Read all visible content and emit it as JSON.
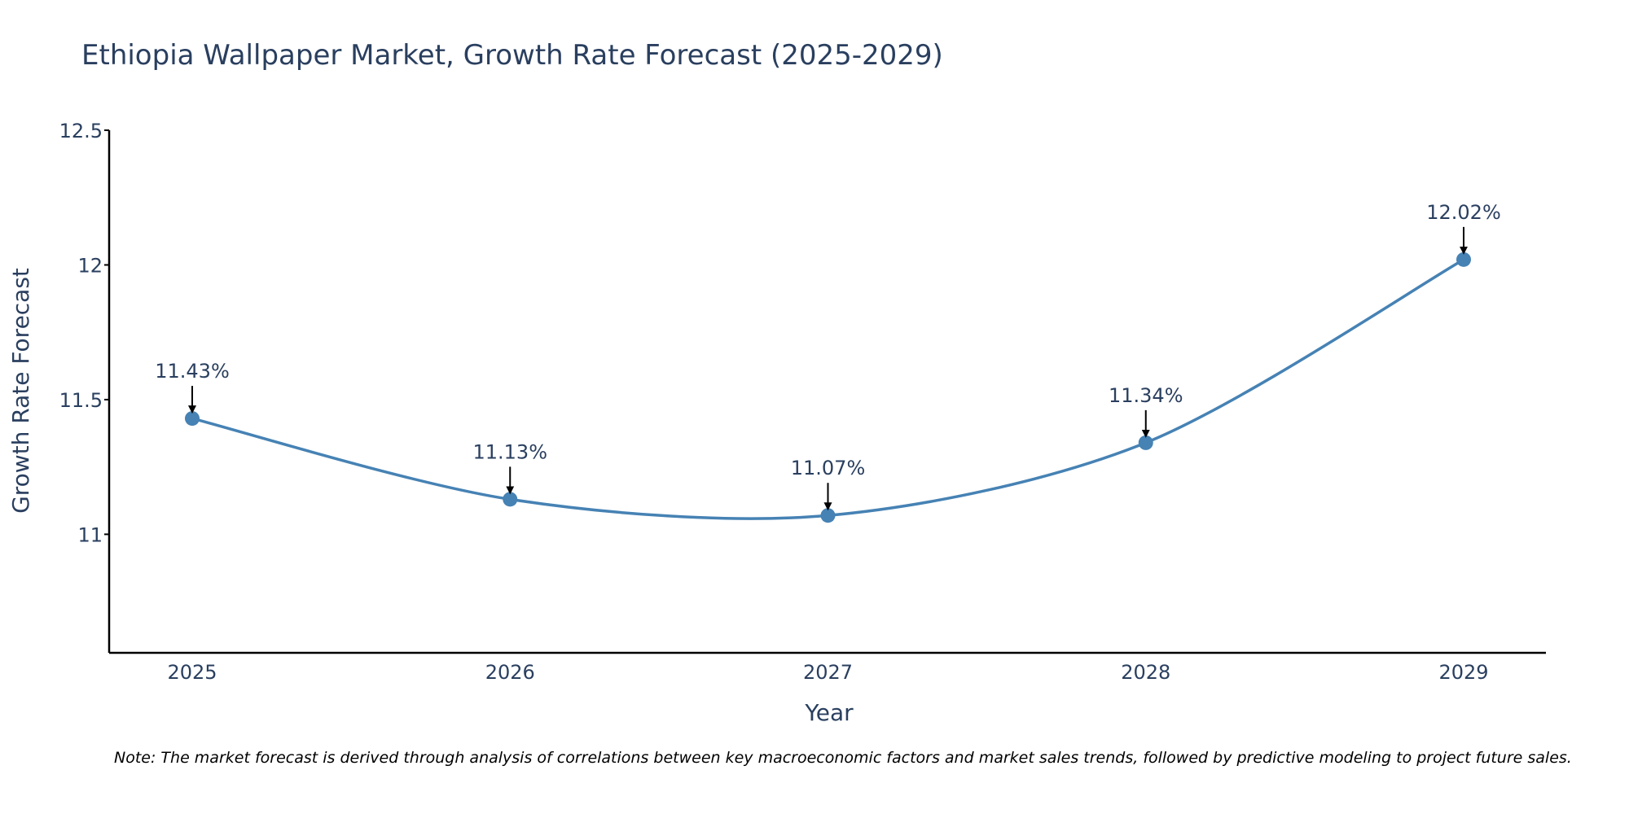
{
  "colors": {
    "line": "#4682b4",
    "marker": "#4682b4",
    "text": "#2a3f5f",
    "axis": "#000000",
    "arrow": "#000000"
  },
  "chart_data": {
    "type": "line",
    "title": "Ethiopia Wallpaper Market, Growth Rate Forecast (2025-2029)",
    "xlabel": "Year",
    "ylabel": "Growth Rate Forecast",
    "categories": [
      "2025",
      "2026",
      "2027",
      "2028",
      "2029"
    ],
    "series": [
      {
        "name": "Growth Rate Forecast",
        "values": [
          11.43,
          11.13,
          11.07,
          11.34,
          12.02
        ]
      }
    ],
    "data_labels": [
      "11.43%",
      "11.13%",
      "11.07%",
      "11.34%",
      "12.02%"
    ],
    "ylim": [
      10.56,
      12.5
    ],
    "yticks": [
      11,
      11.5,
      12,
      12.5
    ],
    "ytick_labels": [
      "11",
      "11.5",
      "12",
      "12.5"
    ],
    "grid": false,
    "line_shape": "spline"
  },
  "note": "Note: The market forecast is derived through analysis of correlations between key macroeconomic factors and market sales trends, followed by predictive modeling to project future sales."
}
